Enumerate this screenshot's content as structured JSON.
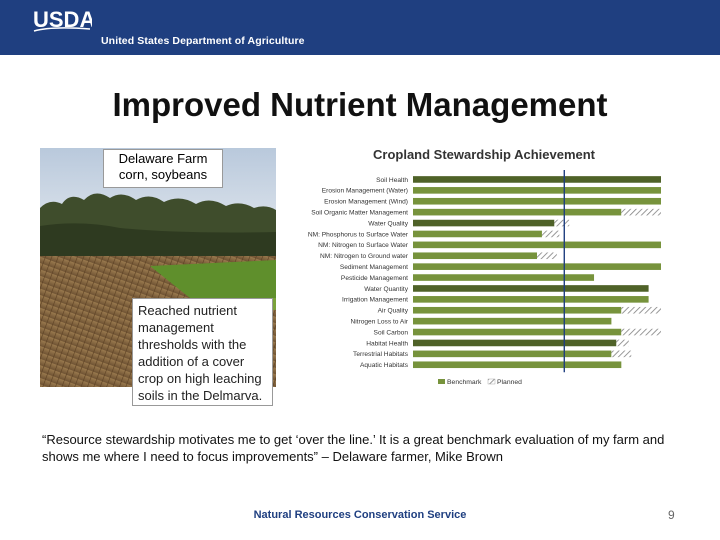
{
  "header": {
    "logo_text": "USDA",
    "agency": "United States Department of Agriculture"
  },
  "slide": {
    "title": "Improved Nutrient Management",
    "farm_name": "Delaware Farm",
    "farm_crops": "corn, soybeans",
    "note": "Reached nutrient management thresholds with the addition of a cover crop on high leaching soils in the Delmarva.",
    "quote": "“Resource stewardship motivates me to get ‘over the line.’ It is a great benchmark evaluation of my farm and shows me where I need to focus improvements” – Delaware farmer, Mike Brown",
    "footer": "Natural Resources Conservation Service",
    "page_number": "9"
  },
  "colors": {
    "banner": "#1f3f80",
    "benchmark": "#77933c",
    "benchmark_dark": "#4f6228",
    "threshold_line": "#1f3f80"
  },
  "chart_data": {
    "type": "bar",
    "orientation": "horizontal",
    "title": "Cropland Stewardship Achievement",
    "categories": [
      "Soil Health",
      "Erosion Management (Water)",
      "Erosion Management (Wind)",
      "Soil Organic Matter Management",
      "Water Quality",
      "NM: Phosphorus to Surface Water",
      "NM: Nitrogen to Surface Water",
      "NM: Nitrogen to Ground water",
      "Sediment Management",
      "Pesticide Management",
      "Water Quantity",
      "Irrigation Management",
      "Air Quality",
      "Nitrogen Loss to Air",
      "Soil Carbon",
      "Habitat Health",
      "Terrestrial Habitats",
      "Aquatic Habitats"
    ],
    "series": [
      {
        "name": "Benchmark",
        "values": [
          100,
          100,
          100,
          84,
          57,
          52,
          100,
          50,
          100,
          73,
          95,
          95,
          84,
          80,
          84,
          82,
          80,
          84
        ]
      },
      {
        "name": "Planned",
        "values": [
          0,
          0,
          0,
          16,
          6,
          7,
          0,
          8,
          0,
          0,
          0,
          0,
          16,
          0,
          16,
          5,
          8,
          0
        ]
      }
    ],
    "dark_rows": [
      0,
      4,
      10,
      15
    ],
    "threshold": 61,
    "xlim": [
      0,
      100
    ],
    "grid": false,
    "legend": "bottom"
  }
}
